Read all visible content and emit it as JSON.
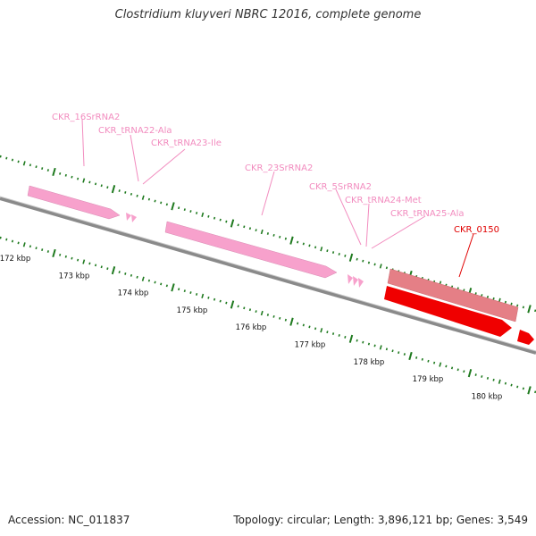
{
  "header": {
    "title": "Clostridium kluyveri NBRC 12016, complete genome"
  },
  "footer": {
    "accession": "Accession: NC_011837",
    "topology": "Topology: circular; Length: 3,896,121 bp; Genes: 3,549"
  },
  "colors": {
    "rna": "#f7a1cc",
    "rna_text": "#f28cbf",
    "gene_light": "#e57f86",
    "gene": "#f00000",
    "gene_text": "#e00000",
    "backbone": "#8a8a8a",
    "tick": "#1f7a1f"
  },
  "kbp_labels": [
    "172 kbp",
    "173 kbp",
    "174 kbp",
    "175 kbp",
    "176 kbp",
    "177 kbp",
    "178 kbp",
    "179 kbp",
    "180 kbp"
  ],
  "features": [
    {
      "label": "CKR_16SrRNA2",
      "kind": "rna"
    },
    {
      "label": "CKR_tRNA22-Ala",
      "kind": "rna"
    },
    {
      "label": "CKR_tRNA23-Ile",
      "kind": "rna"
    },
    {
      "label": "CKR_23SrRNA2",
      "kind": "rna"
    },
    {
      "label": "CKR_5SrRNA2",
      "kind": "rna"
    },
    {
      "label": "CKR_tRNA24-Met",
      "kind": "rna"
    },
    {
      "label": "CKR_tRNA25-Ala",
      "kind": "rna"
    },
    {
      "label": "CKR_0150",
      "kind": "gene"
    }
  ]
}
